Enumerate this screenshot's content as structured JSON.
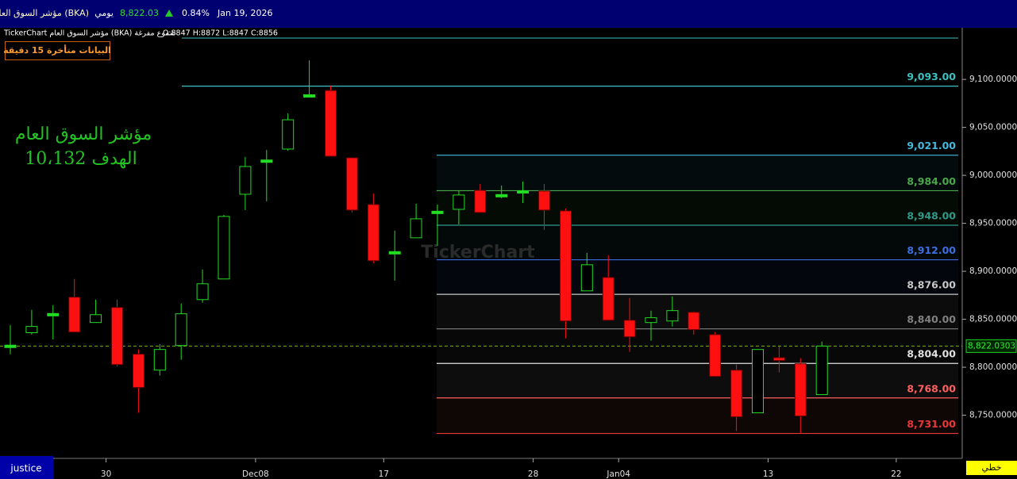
{
  "header": {
    "name": "مؤشر السوق العام (BKA)",
    "period": "يومي",
    "price": "8,822.03",
    "change": "0.84%",
    "date": "Jan 19, 2026"
  },
  "info_line": {
    "source": "TickerChart مؤشر السوق العام (BKA) شموع مفرغة",
    "ohlc": "O:8847 H:8872 L:8847 C:8856"
  },
  "delay_badge": "البيانات متأخرة 15 دقيقة",
  "footer": {
    "user": "justice",
    "style": "خطي"
  },
  "chart_data": {
    "type": "candlestick",
    "watermark": "TickerChart",
    "annotations": [
      "مؤشر السوق العام",
      "الهدف 10،132"
    ],
    "categories": [
      null,
      null,
      null,
      null,
      "30",
      null,
      null,
      null,
      null,
      null,
      null,
      "Dec08",
      null,
      null,
      null,
      null,
      null,
      "17",
      null,
      null,
      null,
      null,
      null,
      null,
      "28",
      null,
      null,
      null,
      "Jan04",
      null,
      null,
      null,
      null,
      null,
      null,
      "13",
      null,
      null,
      null,
      null,
      null,
      "22"
    ],
    "open": [
      8822,
      8836,
      8855,
      8873,
      8846.6,
      8862.3,
      8813.6,
      8797,
      8822.6,
      8870.5,
      8892,
      8980.3,
      9015,
      9027.4,
      9082.7,
      9088.4,
      9018.3,
      8969.6,
      8919.2,
      8934.9,
      8961.3,
      8964.6,
      8984.4,
      8978.7,
      8982.8,
      8983.6,
      8963,
      8879.6,
      8893.6,
      8849,
      8846.6,
      8848.2,
      8857.3,
      8834,
      8797,
      8752.5,
      8810,
      8803.6,
      8771.5,
      null,
      null,
      null
    ],
    "high": [
      8844,
      8859.8,
      8864.7,
      8892,
      8870.5,
      8870.5,
      8818.5,
      8824,
      8866.4,
      8901.9,
      8958.8,
      9019.1,
      9026.5,
      9064.5,
      9119.8,
      9093.4,
      9018.3,
      8981.1,
      8942.3,
      8970.4,
      8969.6,
      8984.4,
      8991,
      8989.4,
      8993.5,
      8991,
      8965.5,
      8919.2,
      8916.7,
      8872.2,
      8859,
      8873.8,
      8858.1,
      8836.7,
      8802.8,
      8818.5,
      8821.8,
      8809.4,
      8826.8,
      null,
      null,
      null
    ],
    "low": [
      8813.6,
      8834,
      8829,
      8836.7,
      8846.6,
      8801,
      8752.5,
      8791.3,
      8807.8,
      8867.2,
      8892,
      8963.8,
      8972.9,
      9025.7,
      9082.7,
      9019.9,
      8961.3,
      8908.5,
      8890.3,
      8934.9,
      8926.6,
      8948.9,
      8961.3,
      8976.2,
      8971.2,
      8943.2,
      8830,
      8879.6,
      8849,
      8816,
      8827.6,
      8842.5,
      8834,
      8790.4,
      8733.5,
      8752.5,
      8794.6,
      8731,
      8771.5,
      null,
      null,
      null
    ],
    "close": [
      8823,
      8842.5,
      8856,
      8836.7,
      8854.8,
      8802.8,
      8778.9,
      8818.5,
      8855.7,
      8887,
      8957.2,
      9009.2,
      9016,
      9057.9,
      9084,
      9019.9,
      8963.8,
      8911,
      8920.5,
      8954.7,
      8962.6,
      8979.5,
      8961.3,
      8980,
      8984,
      8963.8,
      8848.2,
      8906.8,
      8849,
      8831.7,
      8851.6,
      8859,
      8839.2,
      8790.4,
      8748.3,
      8818.5,
      8807,
      8749.2,
      8822.03,
      null,
      null,
      null
    ],
    "up_color": "#22dd22",
    "down_color": "#ff1010",
    "ylim": [
      8705,
      9153
    ],
    "yticks": [
      {
        "value": 8750,
        "label": "8,750.0000"
      },
      {
        "value": 8800,
        "label": "8,800.0000"
      },
      {
        "value": 8850,
        "label": "8,850.0000"
      },
      {
        "value": 8900,
        "label": "8,900.0000"
      },
      {
        "value": 8950,
        "label": "8,950.0000"
      },
      {
        "value": 9000,
        "label": "9,000.0000"
      },
      {
        "value": 9050,
        "label": "9,050.0000"
      },
      {
        "value": 9100,
        "label": "9,100.0000"
      }
    ],
    "levels": [
      {
        "value": 9093,
        "label": "9,093.00",
        "color": "#3cc0c0"
      },
      {
        "value": 9021,
        "label": "9,021.00",
        "color": "#45b8dd"
      },
      {
        "value": 8984,
        "label": "8,984.00",
        "color": "#4aa84a"
      },
      {
        "value": 8948,
        "label": "8,948.00",
        "color": "#2f9a8a"
      },
      {
        "value": 8912,
        "label": "8,912.00",
        "color": "#3c6ee0"
      },
      {
        "value": 8876,
        "label": "8,876.00",
        "color": "#c8c8c8"
      },
      {
        "value": 8840,
        "label": "8,840.00",
        "color": "#808080"
      },
      {
        "value": 8804,
        "label": "8,804.00",
        "color": "#e0e0e0"
      },
      {
        "value": 8768,
        "label": "8,768.00",
        "color": "#ff6060"
      },
      {
        "value": 8731,
        "label": "8,731.00",
        "color": "#e83838"
      }
    ],
    "last_price": {
      "value": 8822.0303,
      "label": "8,822.0303"
    }
  }
}
